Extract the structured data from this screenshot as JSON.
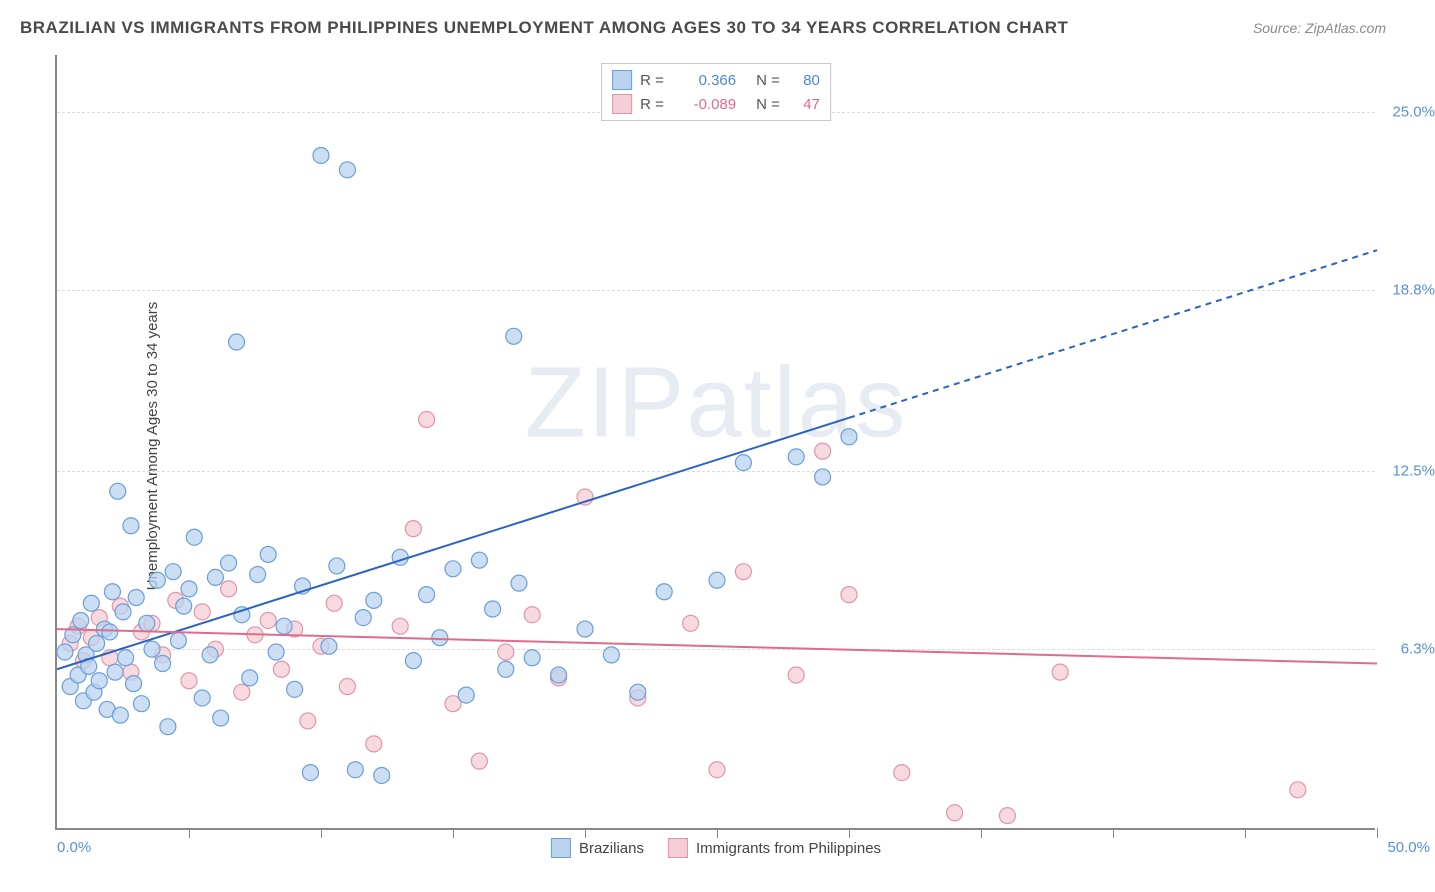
{
  "title": "BRAZILIAN VS IMMIGRANTS FROM PHILIPPINES UNEMPLOYMENT AMONG AGES 30 TO 34 YEARS CORRELATION CHART",
  "source": "Source: ZipAtlas.com",
  "y_axis_label": "Unemployment Among Ages 30 to 34 years",
  "watermark": "ZIPatlas",
  "chart": {
    "type": "scatter",
    "xlim": [
      0,
      50
    ],
    "ylim": [
      0,
      27
    ],
    "x_tick_positions": [
      5,
      10,
      15,
      20,
      25,
      30,
      35,
      40,
      45,
      50
    ],
    "x_tick_labels": {
      "left": "0.0%",
      "right": "50.0%"
    },
    "y_gridlines": [
      6.3,
      12.5,
      18.8,
      25.0
    ],
    "y_tick_labels": [
      "6.3%",
      "12.5%",
      "18.8%",
      "25.0%"
    ],
    "grid_color": "#dcdcdc",
    "axis_color": "#888888",
    "background_color": "#ffffff",
    "marker_radius": 8,
    "marker_stroke_width": 1.2,
    "line_width": 2
  },
  "series": {
    "a": {
      "name": "Brazilians",
      "R": "0.366",
      "N": "80",
      "fill": "#b9d3ef",
      "stroke": "#6b9fd8",
      "value_color": "#4f86d6",
      "trend": {
        "x1": 0,
        "y1": 5.6,
        "x2": 50,
        "y2": 20.2,
        "solid_end_x": 30,
        "color": "#2b63c4"
      },
      "points": [
        [
          0.3,
          6.2
        ],
        [
          0.5,
          5.0
        ],
        [
          0.6,
          6.8
        ],
        [
          0.8,
          5.4
        ],
        [
          0.9,
          7.3
        ],
        [
          1.0,
          4.5
        ],
        [
          1.1,
          6.1
        ],
        [
          1.2,
          5.7
        ],
        [
          1.3,
          7.9
        ],
        [
          1.4,
          4.8
        ],
        [
          1.5,
          6.5
        ],
        [
          1.6,
          5.2
        ],
        [
          1.8,
          7.0
        ],
        [
          1.9,
          4.2
        ],
        [
          2.0,
          6.9
        ],
        [
          2.1,
          8.3
        ],
        [
          2.2,
          5.5
        ],
        [
          2.3,
          11.8
        ],
        [
          2.4,
          4.0
        ],
        [
          2.5,
          7.6
        ],
        [
          2.6,
          6.0
        ],
        [
          2.8,
          10.6
        ],
        [
          2.9,
          5.1
        ],
        [
          3.0,
          8.1
        ],
        [
          3.2,
          4.4
        ],
        [
          3.4,
          7.2
        ],
        [
          3.6,
          6.3
        ],
        [
          3.8,
          8.7
        ],
        [
          4.0,
          5.8
        ],
        [
          4.2,
          3.6
        ],
        [
          4.4,
          9.0
        ],
        [
          4.6,
          6.6
        ],
        [
          4.8,
          7.8
        ],
        [
          5.0,
          8.4
        ],
        [
          5.2,
          10.2
        ],
        [
          5.5,
          4.6
        ],
        [
          5.8,
          6.1
        ],
        [
          6.0,
          8.8
        ],
        [
          6.2,
          3.9
        ],
        [
          6.5,
          9.3
        ],
        [
          6.8,
          17.0
        ],
        [
          7.0,
          7.5
        ],
        [
          7.3,
          5.3
        ],
        [
          7.6,
          8.9
        ],
        [
          8.0,
          9.6
        ],
        [
          8.3,
          6.2
        ],
        [
          8.6,
          7.1
        ],
        [
          9.0,
          4.9
        ],
        [
          9.3,
          8.5
        ],
        [
          9.6,
          2.0
        ],
        [
          10.0,
          23.5
        ],
        [
          10.3,
          6.4
        ],
        [
          10.6,
          9.2
        ],
        [
          11.0,
          23.0
        ],
        [
          11.3,
          2.1
        ],
        [
          11.6,
          7.4
        ],
        [
          12.0,
          8.0
        ],
        [
          12.3,
          1.9
        ],
        [
          13.0,
          9.5
        ],
        [
          13.5,
          5.9
        ],
        [
          14.0,
          8.2
        ],
        [
          14.5,
          6.7
        ],
        [
          15.0,
          9.1
        ],
        [
          15.5,
          4.7
        ],
        [
          16.0,
          9.4
        ],
        [
          16.5,
          7.7
        ],
        [
          17.0,
          5.6
        ],
        [
          17.3,
          17.2
        ],
        [
          17.5,
          8.6
        ],
        [
          18.0,
          6.0
        ],
        [
          19.0,
          5.4
        ],
        [
          20.0,
          7.0
        ],
        [
          21.0,
          6.1
        ],
        [
          22.0,
          4.8
        ],
        [
          23.0,
          8.3
        ],
        [
          25.0,
          8.7
        ],
        [
          26.0,
          12.8
        ],
        [
          28.0,
          13.0
        ],
        [
          29.0,
          12.3
        ],
        [
          30.0,
          13.7
        ]
      ]
    },
    "b": {
      "name": "Immigrants from Philippines",
      "R": "-0.089",
      "N": "47",
      "fill": "#f4cdd6",
      "stroke": "#e394aa",
      "value_color": "#e06b8b",
      "trend": {
        "x1": 0,
        "y1": 7.0,
        "x2": 50,
        "y2": 5.8,
        "solid_end_x": 50,
        "color": "#e06b8b"
      },
      "points": [
        [
          0.5,
          6.5
        ],
        [
          0.8,
          7.1
        ],
        [
          1.0,
          5.9
        ],
        [
          1.3,
          6.7
        ],
        [
          1.6,
          7.4
        ],
        [
          2.0,
          6.0
        ],
        [
          2.4,
          7.8
        ],
        [
          2.8,
          5.5
        ],
        [
          3.2,
          6.9
        ],
        [
          3.6,
          7.2
        ],
        [
          4.0,
          6.1
        ],
        [
          4.5,
          8.0
        ],
        [
          5.0,
          5.2
        ],
        [
          5.5,
          7.6
        ],
        [
          6.0,
          6.3
        ],
        [
          6.5,
          8.4
        ],
        [
          7.0,
          4.8
        ],
        [
          7.5,
          6.8
        ],
        [
          8.0,
          7.3
        ],
        [
          8.5,
          5.6
        ],
        [
          9.0,
          7.0
        ],
        [
          9.5,
          3.8
        ],
        [
          10.0,
          6.4
        ],
        [
          10.5,
          7.9
        ],
        [
          11.0,
          5.0
        ],
        [
          12.0,
          3.0
        ],
        [
          13.0,
          7.1
        ],
        [
          13.5,
          10.5
        ],
        [
          14.0,
          14.3
        ],
        [
          15.0,
          4.4
        ],
        [
          16.0,
          2.4
        ],
        [
          17.0,
          6.2
        ],
        [
          18.0,
          7.5
        ],
        [
          19.0,
          5.3
        ],
        [
          20.0,
          11.6
        ],
        [
          22.0,
          4.6
        ],
        [
          24.0,
          7.2
        ],
        [
          25.0,
          2.1
        ],
        [
          26.0,
          9.0
        ],
        [
          28.0,
          5.4
        ],
        [
          29.0,
          13.2
        ],
        [
          30.0,
          8.2
        ],
        [
          32.0,
          2.0
        ],
        [
          34.0,
          0.6
        ],
        [
          36.0,
          0.5
        ],
        [
          38.0,
          5.5
        ],
        [
          47.0,
          1.4
        ]
      ]
    }
  },
  "legend_top": {
    "r_label": "R =",
    "n_label": "N ="
  },
  "legend_bottom": {
    "a_label": "Brazilians",
    "b_label": "Immigrants from Philippines"
  }
}
